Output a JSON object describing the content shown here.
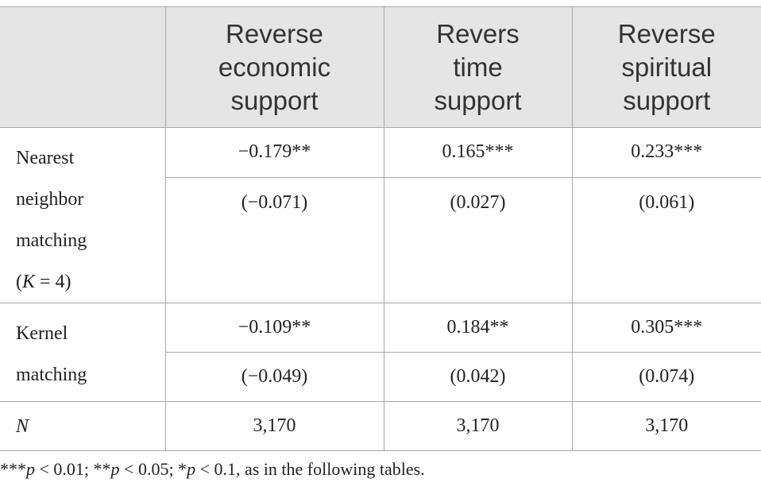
{
  "table": {
    "columns": [
      [
        "Reverse",
        "economic",
        "support"
      ],
      [
        "Revers",
        "time",
        "support"
      ],
      [
        "Reverse",
        "spiritual",
        "support"
      ]
    ],
    "rows": [
      {
        "label": [
          "Nearest",
          "neighbor",
          "matching"
        ],
        "label_note": [
          "(",
          "K",
          " = 4)"
        ],
        "coef": [
          "−0.179**",
          "0.165***",
          "0.233***"
        ],
        "se": [
          "(−0.071)",
          "(0.027)",
          "(0.061)"
        ]
      },
      {
        "label": [
          "Kernel",
          "matching"
        ],
        "coef": [
          "−0.109**",
          "0.184**",
          "0.305***"
        ],
        "se": [
          "(−0.049)",
          "(0.042)",
          "(0.074)"
        ]
      }
    ],
    "n_row": {
      "label": "N",
      "values": [
        "3,170",
        "3,170",
        "3,170"
      ]
    }
  },
  "footnote": [
    "***",
    "p",
    " < 0.01; **",
    "p",
    " < 0.05; *",
    "p",
    " < 0.1, as in the following tables."
  ]
}
